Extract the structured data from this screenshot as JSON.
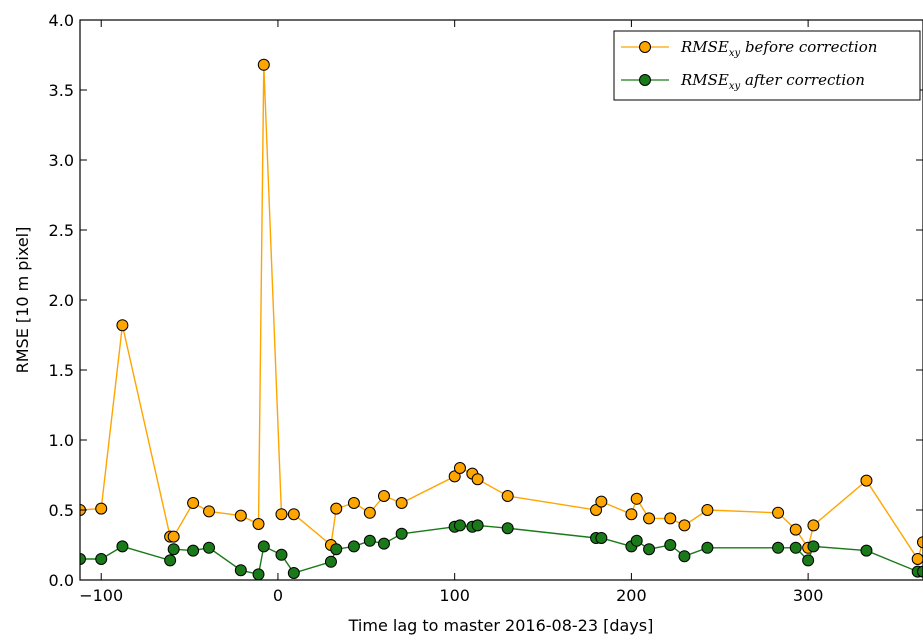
{
  "chart_data": {
    "type": "line",
    "xlabel": "Time lag to master 2016-08-23 [days]",
    "ylabel": "RMSE [10 m pixel]",
    "xlim": [
      -112,
      365
    ],
    "ylim": [
      0.0,
      4.0
    ],
    "xticks": [
      -100,
      0,
      100,
      200,
      300
    ],
    "yticks": [
      0.0,
      0.5,
      1.0,
      1.5,
      2.0,
      2.5,
      3.0,
      3.5,
      4.0
    ],
    "grid": false,
    "legend_position": "top-right",
    "series": [
      {
        "name_main": "RMSE",
        "name_sub": "xy",
        "name_rest": " before correction",
        "color": "#FFA500",
        "x": [
          -112,
          -100,
          -88,
          -61,
          -59,
          -48,
          -39,
          -21,
          -11,
          -8,
          2,
          9,
          30,
          33,
          43,
          52,
          60,
          70,
          100,
          103,
          110,
          113,
          130,
          180,
          183,
          200,
          203,
          210,
          222,
          230,
          243,
          283,
          293,
          300,
          303,
          333,
          362,
          365
        ],
        "y": [
          0.5,
          0.51,
          1.82,
          0.31,
          0.31,
          0.55,
          0.49,
          0.46,
          0.4,
          3.68,
          0.47,
          0.47,
          0.25,
          0.51,
          0.55,
          0.48,
          0.6,
          0.55,
          0.74,
          0.8,
          0.76,
          0.72,
          0.6,
          0.5,
          0.56,
          0.47,
          0.58,
          0.44,
          0.44,
          0.39,
          0.5,
          0.48,
          0.36,
          0.23,
          0.39,
          0.71,
          0.15,
          0.27
        ]
      },
      {
        "name_main": "RMSE",
        "name_sub": "xy",
        "name_rest": " after correction",
        "color": "#1A7A1A",
        "x": [
          -112,
          -100,
          -88,
          -61,
          -59,
          -48,
          -39,
          -21,
          -11,
          -8,
          2,
          9,
          30,
          33,
          43,
          52,
          60,
          70,
          100,
          103,
          110,
          113,
          130,
          180,
          183,
          200,
          203,
          210,
          222,
          230,
          243,
          283,
          293,
          300,
          303,
          333,
          362,
          365
        ],
        "y": [
          0.15,
          0.15,
          0.24,
          0.14,
          0.22,
          0.21,
          0.23,
          0.07,
          0.04,
          0.24,
          0.18,
          0.05,
          0.13,
          0.22,
          0.24,
          0.28,
          0.26,
          0.33,
          0.38,
          0.39,
          0.38,
          0.39,
          0.37,
          0.3,
          0.3,
          0.24,
          0.28,
          0.22,
          0.25,
          0.17,
          0.23,
          0.23,
          0.23,
          0.14,
          0.24,
          0.21,
          0.06,
          0.06
        ]
      }
    ]
  }
}
